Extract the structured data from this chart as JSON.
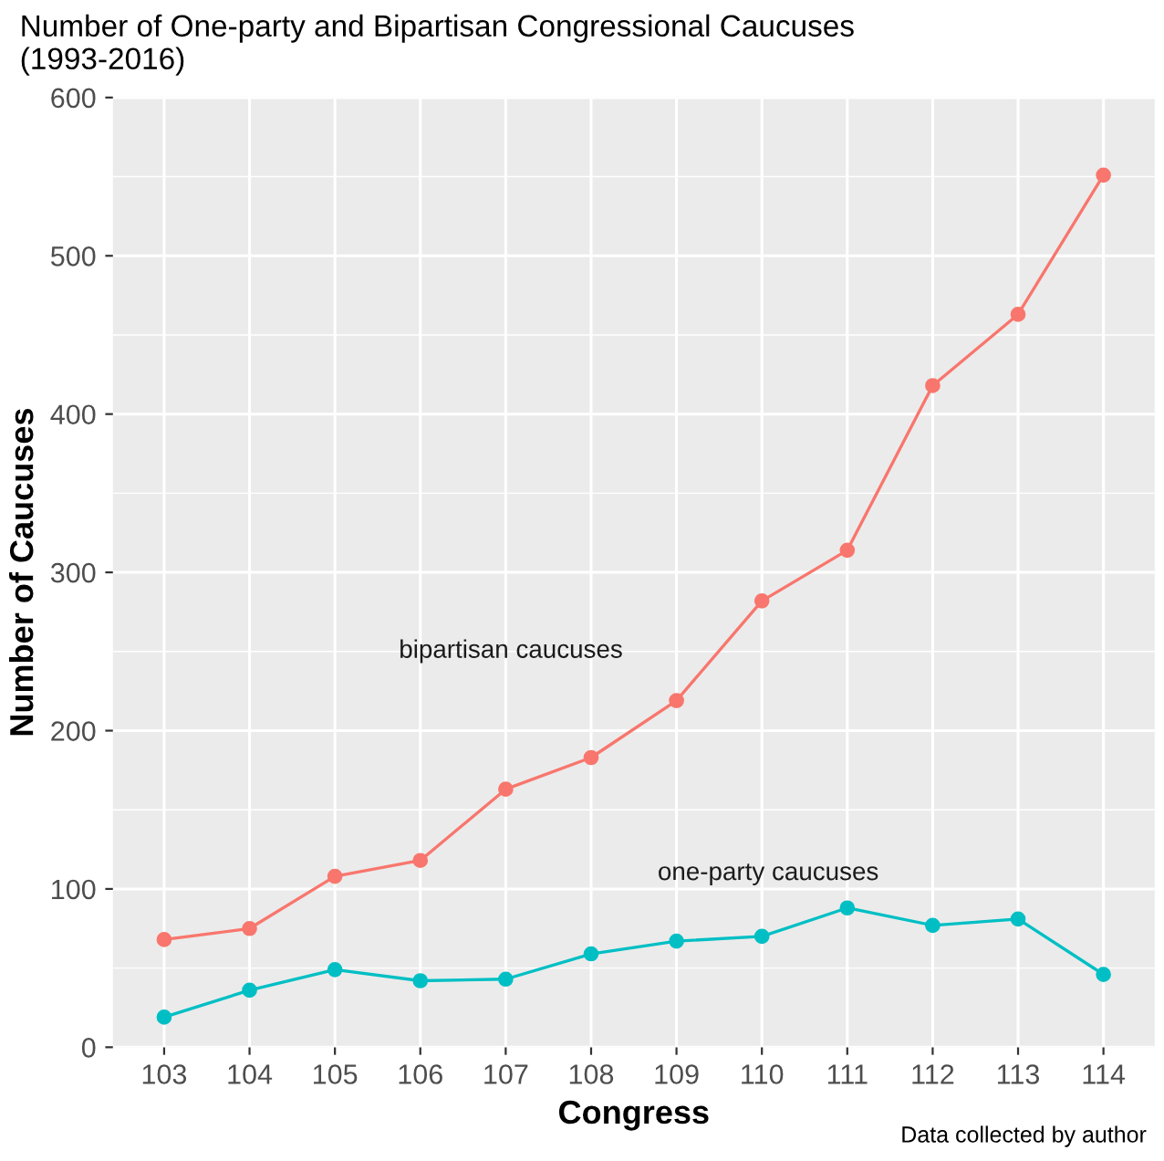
{
  "chart_data": {
    "type": "line",
    "title": "Number of One-party and Bipartisan Congressional Caucuses\n(1993-2016)",
    "xlabel": "Congress",
    "ylabel": "Number of Caucuses",
    "categories": [
      "103",
      "104",
      "105",
      "106",
      "107",
      "108",
      "109",
      "110",
      "111",
      "112",
      "113",
      "114"
    ],
    "series": [
      {
        "color": "#f8766d",
        "values": [
          68,
          75,
          108,
          118,
          163,
          183,
          219,
          282,
          314,
          418,
          463,
          551
        ]
      },
      {
        "color": "#00bfc4",
        "values": [
          19,
          36,
          49,
          42,
          43,
          59,
          67,
          70,
          88,
          77,
          81,
          46
        ]
      }
    ],
    "ylim": [
      0,
      600
    ],
    "yticks": [
      0,
      100,
      200,
      300,
      400,
      500,
      600
    ],
    "grid": true,
    "marker": "circle",
    "line_style": "solid",
    "annotations": [
      "bipartisan caucuses",
      "one-party caucuses",
      "Data collected by author"
    ]
  }
}
